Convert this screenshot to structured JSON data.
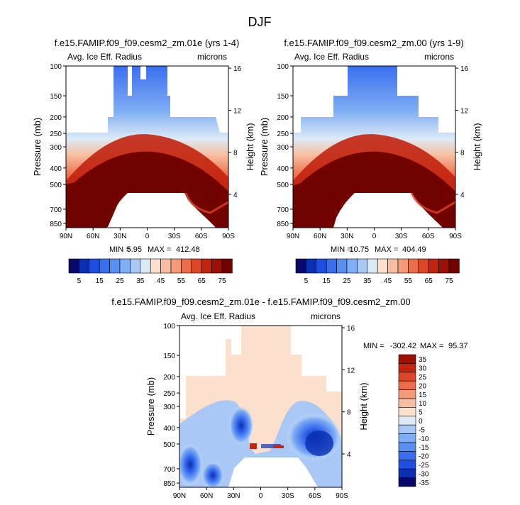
{
  "title": "DJF",
  "chart_data": [
    {
      "type": "heatmap",
      "title": "f.e15.FAMIP.f09_f09.cesm2_zm.01e (yrs 1-4)",
      "left_label": "Avg. Ice Eff. Radius",
      "right_label": "microns",
      "xlabel": "",
      "ylabel": "Pressure (mb)",
      "ylabel_right": "Height (km)",
      "x_ticks": [
        "90N",
        "60N",
        "30N",
        "0",
        "30S",
        "60S",
        "90S"
      ],
      "y_ticks": [
        "100",
        "150",
        "200",
        "250",
        "300",
        "400",
        "500",
        "700",
        "850"
      ],
      "y_ticks_right": [
        "16",
        "12",
        "8",
        "4"
      ],
      "ylim": [
        100,
        900
      ],
      "min_label": "MIN =",
      "min_value": "5.95",
      "max_label": "MAX =",
      "max_value": "412.48",
      "levels": [
        5,
        10,
        15,
        20,
        25,
        30,
        35,
        40,
        45,
        50,
        55,
        60,
        65,
        70,
        75
      ],
      "colorbar_labels": [
        "5",
        "15",
        "25",
        "35",
        "45",
        "55",
        "65",
        "75"
      ]
    },
    {
      "type": "heatmap",
      "title": "f.e15.FAMIP.f09_f09.cesm2_zm.00 (yrs 1-9)",
      "left_label": "Avg. Ice Eff. Radius",
      "right_label": "microns",
      "xlabel": "",
      "ylabel": "Pressure (mb)",
      "ylabel_right": "Height (km)",
      "x_ticks": [
        "90N",
        "60N",
        "30N",
        "0",
        "30S",
        "60S",
        "90S"
      ],
      "y_ticks": [
        "100",
        "150",
        "200",
        "250",
        "300",
        "400",
        "500",
        "700",
        "850"
      ],
      "y_ticks_right": [
        "16",
        "12",
        "8",
        "4"
      ],
      "ylim": [
        100,
        900
      ],
      "min_label": "MIN =",
      "min_value": "10.75",
      "max_label": "MAX =",
      "max_value": "404.49",
      "levels": [
        5,
        10,
        15,
        20,
        25,
        30,
        35,
        40,
        45,
        50,
        55,
        60,
        65,
        70,
        75
      ],
      "colorbar_labels": [
        "5",
        "15",
        "25",
        "35",
        "45",
        "55",
        "65",
        "75"
      ]
    },
    {
      "type": "heatmap",
      "title": "f.e15.FAMIP.f09_f09.cesm2_zm.01e - f.e15.FAMIP.f09_f09.cesm2_zm.00",
      "left_label": "Avg. Ice Eff. Radius",
      "right_label": "microns",
      "xlabel": "",
      "ylabel": "Pressure (mb)",
      "ylabel_right": "Height (km)",
      "x_ticks": [
        "90N",
        "60N",
        "30N",
        "0",
        "30S",
        "60S",
        "90S"
      ],
      "y_ticks": [
        "100",
        "150",
        "200",
        "250",
        "300",
        "400",
        "500",
        "700",
        "850"
      ],
      "y_ticks_right": [
        "16",
        "12",
        "8",
        "4"
      ],
      "ylim": [
        100,
        900
      ],
      "min_label": "MIN =",
      "min_value": "-302.42",
      "max_label": "MAX =",
      "max_value": "95.37",
      "levels": [
        -35,
        -30,
        -25,
        -20,
        -15,
        -10,
        -5,
        0,
        5,
        10,
        15,
        20,
        25,
        30,
        35
      ],
      "colorbar_labels": [
        "35",
        "30",
        "25",
        "20",
        "15",
        "10",
        "5",
        "0",
        "-5",
        "-10",
        "-15",
        "-20",
        "-25",
        "-30",
        "-35"
      ]
    }
  ],
  "colors": {
    "top_scale": [
      "#08086b",
      "#0a2fb0",
      "#1f4fe0",
      "#3a6ef0",
      "#5a8ff2",
      "#80aef4",
      "#a9c8f5",
      "#dceaf5",
      "#fbe0ce",
      "#f7bea2",
      "#f39a78",
      "#ea6e4c",
      "#dc4528",
      "#c22410",
      "#9c0f05",
      "#720400"
    ],
    "diff_scale": [
      "#9c0f05",
      "#c22410",
      "#dc4528",
      "#ea6e4c",
      "#f39a78",
      "#f7bea2",
      "#fbe0ce",
      "#dceaf5",
      "#a9c8f5",
      "#80aef4",
      "#5a8ff2",
      "#3a6ef0",
      "#1f4fe0",
      "#0a2fb0",
      "#08086b"
    ]
  }
}
